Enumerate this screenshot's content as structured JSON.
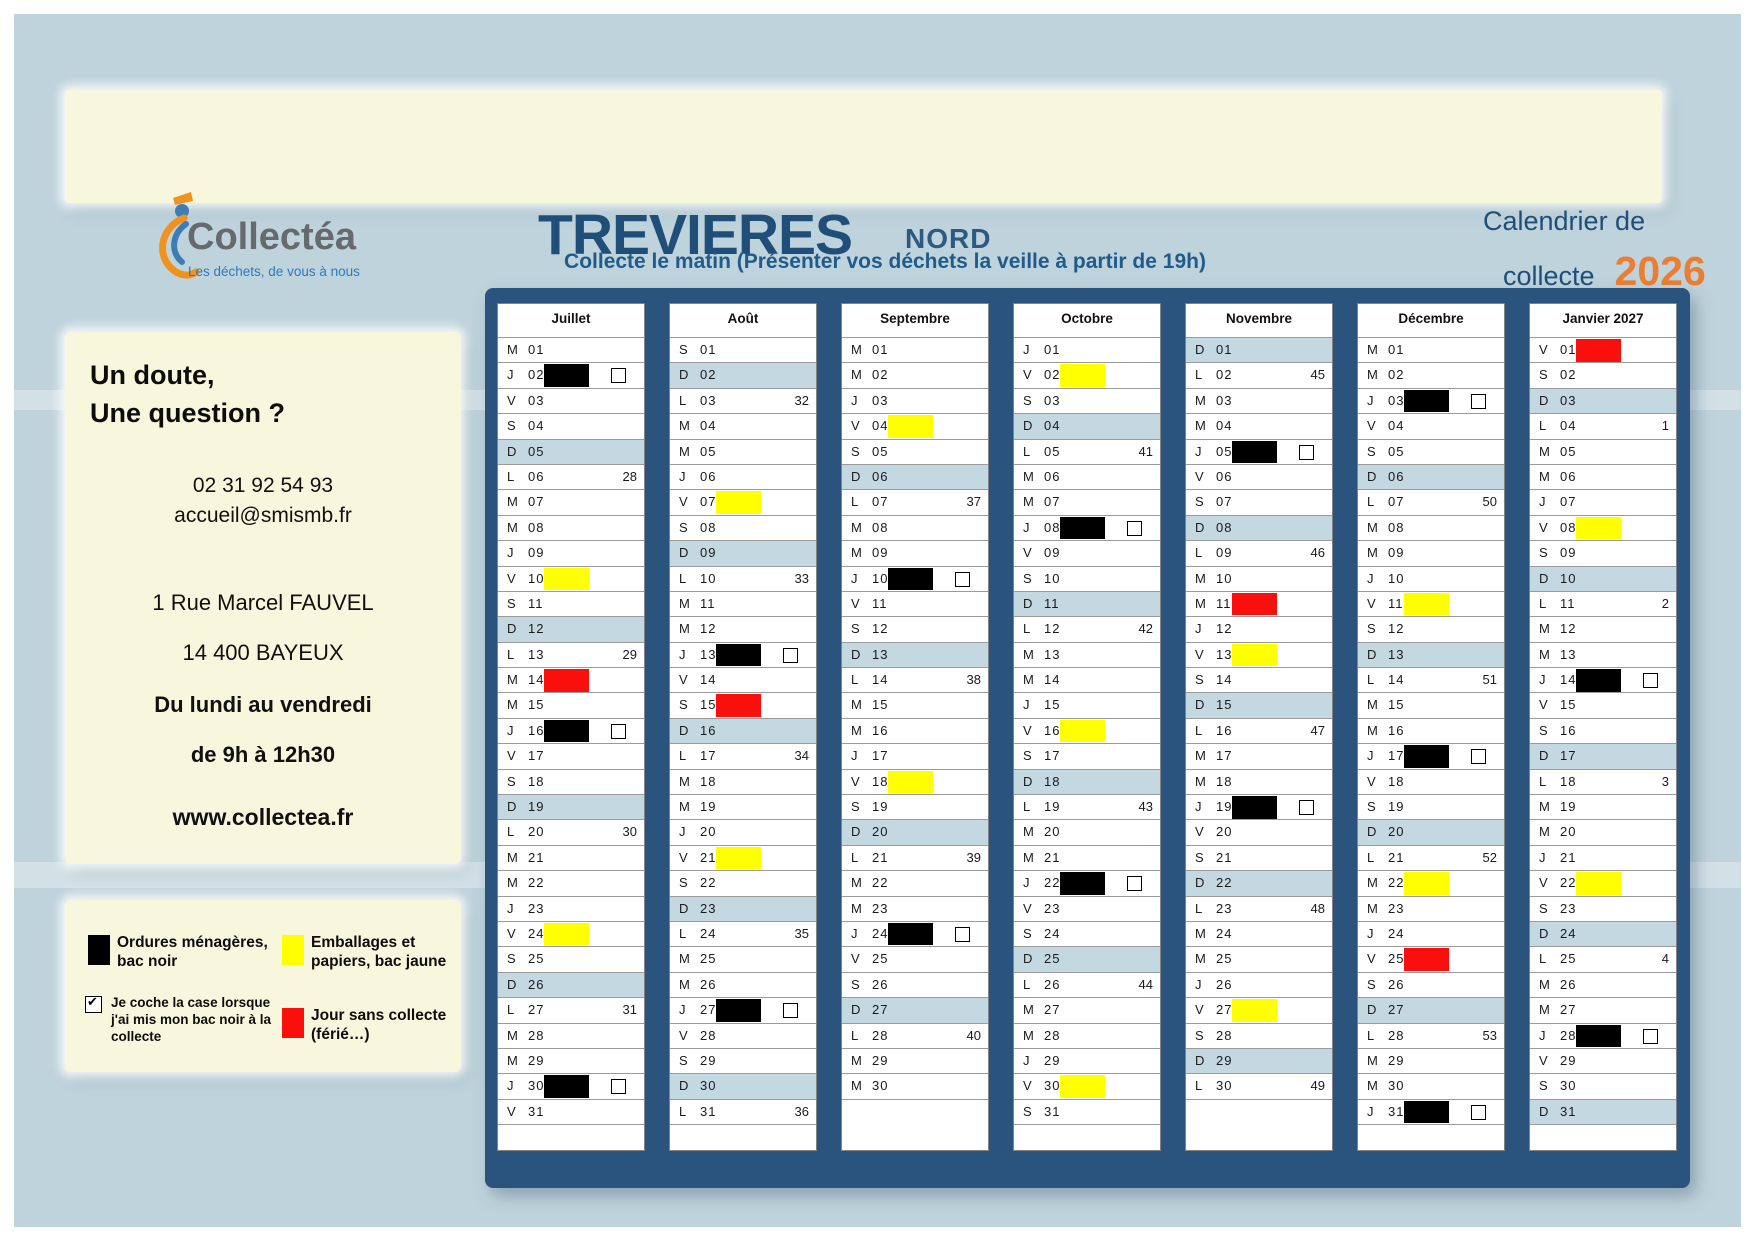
{
  "header": {
    "logo_name": "Collectéa",
    "logo_tagline": "Les déchets, de vous à nous",
    "commune": "TREVIERES",
    "zone": "NORD",
    "right_line1": "Calendrier de",
    "right_line2": "collecte",
    "year": "2026"
  },
  "notice": "Collecte le matin (Présenter vos déchets la veille à partir de 19h)",
  "contact": {
    "heading1": "Un doute,",
    "heading2": "Une question ?",
    "phone": "02 31 92 54 93",
    "email": "accueil@smismb.fr",
    "address1": "1 Rue Marcel FAUVEL",
    "address2": "14 400 BAYEUX",
    "hours1": "Du lundi au vendredi",
    "hours2": "de 9h à 12h30",
    "website": "www.collectea.fr"
  },
  "legend": {
    "black_line1": "Ordures ménagères,",
    "black_line2": "bac noir",
    "yellow_line1": "Emballages et",
    "yellow_line2": "papiers, bac jaune",
    "checkbox_label": "Je coche la case lorsque j'ai mis mon bac noir à la collecte",
    "checkbox_checked": true,
    "red_line1": "Jour sans collecte",
    "red_line2": "(férié…)"
  },
  "colors": {
    "black": "#000000",
    "yellow": "#ffff00",
    "red": "#f90f0c",
    "sunday_row": "#c4d8e2",
    "panel_navy": "#2a547d",
    "accent_orange": "#ed7d31",
    "accent_blue": "#1f4e79",
    "cream": "#f7f7de",
    "page_blue": "#bfd3dc"
  },
  "calendar": {
    "months": [
      {
        "name": "Juillet",
        "days": [
          {
            "d": "M",
            "n": "01"
          },
          {
            "d": "J",
            "n": "02",
            "m": "black",
            "c": true
          },
          {
            "d": "V",
            "n": "03"
          },
          {
            "d": "S",
            "n": "04"
          },
          {
            "d": "D",
            "n": "05"
          },
          {
            "d": "L",
            "n": "06",
            "w": "28"
          },
          {
            "d": "M",
            "n": "07"
          },
          {
            "d": "M",
            "n": "08"
          },
          {
            "d": "J",
            "n": "09"
          },
          {
            "d": "V",
            "n": "10",
            "m": "yellow"
          },
          {
            "d": "S",
            "n": "11"
          },
          {
            "d": "D",
            "n": "12"
          },
          {
            "d": "L",
            "n": "13",
            "w": "29"
          },
          {
            "d": "M",
            "n": "14",
            "m": "red"
          },
          {
            "d": "M",
            "n": "15"
          },
          {
            "d": "J",
            "n": "16",
            "m": "black",
            "c": true
          },
          {
            "d": "V",
            "n": "17"
          },
          {
            "d": "S",
            "n": "18"
          },
          {
            "d": "D",
            "n": "19"
          },
          {
            "d": "L",
            "n": "20",
            "w": "30"
          },
          {
            "d": "M",
            "n": "21"
          },
          {
            "d": "M",
            "n": "22"
          },
          {
            "d": "J",
            "n": "23"
          },
          {
            "d": "V",
            "n": "24",
            "m": "yellow"
          },
          {
            "d": "S",
            "n": "25"
          },
          {
            "d": "D",
            "n": "26"
          },
          {
            "d": "L",
            "n": "27",
            "w": "31"
          },
          {
            "d": "M",
            "n": "28"
          },
          {
            "d": "M",
            "n": "29"
          },
          {
            "d": "J",
            "n": "30",
            "m": "black",
            "c": true
          },
          {
            "d": "V",
            "n": "31"
          }
        ]
      },
      {
        "name": "Août",
        "days": [
          {
            "d": "S",
            "n": "01"
          },
          {
            "d": "D",
            "n": "02"
          },
          {
            "d": "L",
            "n": "03",
            "w": "32"
          },
          {
            "d": "M",
            "n": "04"
          },
          {
            "d": "M",
            "n": "05"
          },
          {
            "d": "J",
            "n": "06"
          },
          {
            "d": "V",
            "n": "07",
            "m": "yellow"
          },
          {
            "d": "S",
            "n": "08"
          },
          {
            "d": "D",
            "n": "09"
          },
          {
            "d": "L",
            "n": "10",
            "w": "33"
          },
          {
            "d": "M",
            "n": "11"
          },
          {
            "d": "M",
            "n": "12"
          },
          {
            "d": "J",
            "n": "13",
            "m": "black",
            "c": true
          },
          {
            "d": "V",
            "n": "14"
          },
          {
            "d": "S",
            "n": "15",
            "m": "red"
          },
          {
            "d": "D",
            "n": "16"
          },
          {
            "d": "L",
            "n": "17",
            "w": "34"
          },
          {
            "d": "M",
            "n": "18"
          },
          {
            "d": "M",
            "n": "19"
          },
          {
            "d": "J",
            "n": "20"
          },
          {
            "d": "V",
            "n": "21",
            "m": "yellow"
          },
          {
            "d": "S",
            "n": "22"
          },
          {
            "d": "D",
            "n": "23"
          },
          {
            "d": "L",
            "n": "24",
            "w": "35"
          },
          {
            "d": "M",
            "n": "25"
          },
          {
            "d": "M",
            "n": "26"
          },
          {
            "d": "J",
            "n": "27",
            "m": "black",
            "c": true
          },
          {
            "d": "V",
            "n": "28"
          },
          {
            "d": "S",
            "n": "29"
          },
          {
            "d": "D",
            "n": "30"
          },
          {
            "d": "L",
            "n": "31",
            "w": "36"
          }
        ]
      },
      {
        "name": "Septembre",
        "days": [
          {
            "d": "M",
            "n": "01"
          },
          {
            "d": "M",
            "n": "02"
          },
          {
            "d": "J",
            "n": "03"
          },
          {
            "d": "V",
            "n": "04",
            "m": "yellow"
          },
          {
            "d": "S",
            "n": "05"
          },
          {
            "d": "D",
            "n": "06"
          },
          {
            "d": "L",
            "n": "07",
            "w": "37"
          },
          {
            "d": "M",
            "n": "08"
          },
          {
            "d": "M",
            "n": "09"
          },
          {
            "d": "J",
            "n": "10",
            "m": "black",
            "c": true
          },
          {
            "d": "V",
            "n": "11"
          },
          {
            "d": "S",
            "n": "12"
          },
          {
            "d": "D",
            "n": "13"
          },
          {
            "d": "L",
            "n": "14",
            "w": "38"
          },
          {
            "d": "M",
            "n": "15"
          },
          {
            "d": "M",
            "n": "16"
          },
          {
            "d": "J",
            "n": "17"
          },
          {
            "d": "V",
            "n": "18",
            "m": "yellow"
          },
          {
            "d": "S",
            "n": "19"
          },
          {
            "d": "D",
            "n": "20"
          },
          {
            "d": "L",
            "n": "21",
            "w": "39"
          },
          {
            "d": "M",
            "n": "22"
          },
          {
            "d": "M",
            "n": "23"
          },
          {
            "d": "J",
            "n": "24",
            "m": "black",
            "c": true
          },
          {
            "d": "V",
            "n": "25"
          },
          {
            "d": "S",
            "n": "26"
          },
          {
            "d": "D",
            "n": "27"
          },
          {
            "d": "L",
            "n": "28",
            "w": "40"
          },
          {
            "d": "M",
            "n": "29"
          },
          {
            "d": "M",
            "n": "30"
          }
        ]
      },
      {
        "name": "Octobre",
        "days": [
          {
            "d": "J",
            "n": "01"
          },
          {
            "d": "V",
            "n": "02",
            "m": "yellow"
          },
          {
            "d": "S",
            "n": "03"
          },
          {
            "d": "D",
            "n": "04"
          },
          {
            "d": "L",
            "n": "05",
            "w": "41"
          },
          {
            "d": "M",
            "n": "06"
          },
          {
            "d": "M",
            "n": "07"
          },
          {
            "d": "J",
            "n": "08",
            "m": "black",
            "c": true
          },
          {
            "d": "V",
            "n": "09"
          },
          {
            "d": "S",
            "n": "10"
          },
          {
            "d": "D",
            "n": "11"
          },
          {
            "d": "L",
            "n": "12",
            "w": "42"
          },
          {
            "d": "M",
            "n": "13"
          },
          {
            "d": "M",
            "n": "14"
          },
          {
            "d": "J",
            "n": "15"
          },
          {
            "d": "V",
            "n": "16",
            "m": "yellow"
          },
          {
            "d": "S",
            "n": "17"
          },
          {
            "d": "D",
            "n": "18"
          },
          {
            "d": "L",
            "n": "19",
            "w": "43"
          },
          {
            "d": "M",
            "n": "20"
          },
          {
            "d": "M",
            "n": "21"
          },
          {
            "d": "J",
            "n": "22",
            "m": "black",
            "c": true
          },
          {
            "d": "V",
            "n": "23"
          },
          {
            "d": "S",
            "n": "24"
          },
          {
            "d": "D",
            "n": "25"
          },
          {
            "d": "L",
            "n": "26",
            "w": "44"
          },
          {
            "d": "M",
            "n": "27"
          },
          {
            "d": "M",
            "n": "28"
          },
          {
            "d": "J",
            "n": "29"
          },
          {
            "d": "V",
            "n": "30",
            "m": "yellow"
          },
          {
            "d": "S",
            "n": "31"
          }
        ]
      },
      {
        "name": "Novembre",
        "days": [
          {
            "d": "D",
            "n": "01"
          },
          {
            "d": "L",
            "n": "02",
            "w": "45"
          },
          {
            "d": "M",
            "n": "03"
          },
          {
            "d": "M",
            "n": "04"
          },
          {
            "d": "J",
            "n": "05",
            "m": "black",
            "c": true
          },
          {
            "d": "V",
            "n": "06"
          },
          {
            "d": "S",
            "n": "07"
          },
          {
            "d": "D",
            "n": "08"
          },
          {
            "d": "L",
            "n": "09",
            "w": "46"
          },
          {
            "d": "M",
            "n": "10"
          },
          {
            "d": "M",
            "n": "11",
            "m": "red"
          },
          {
            "d": "J",
            "n": "12"
          },
          {
            "d": "V",
            "n": "13",
            "m": "yellow"
          },
          {
            "d": "S",
            "n": "14"
          },
          {
            "d": "D",
            "n": "15"
          },
          {
            "d": "L",
            "n": "16",
            "w": "47"
          },
          {
            "d": "M",
            "n": "17"
          },
          {
            "d": "M",
            "n": "18"
          },
          {
            "d": "J",
            "n": "19",
            "m": "black",
            "c": true
          },
          {
            "d": "V",
            "n": "20"
          },
          {
            "d": "S",
            "n": "21"
          },
          {
            "d": "D",
            "n": "22"
          },
          {
            "d": "L",
            "n": "23",
            "w": "48"
          },
          {
            "d": "M",
            "n": "24"
          },
          {
            "d": "M",
            "n": "25"
          },
          {
            "d": "J",
            "n": "26"
          },
          {
            "d": "V",
            "n": "27",
            "m": "yellow"
          },
          {
            "d": "S",
            "n": "28"
          },
          {
            "d": "D",
            "n": "29"
          },
          {
            "d": "L",
            "n": "30",
            "w": "49"
          }
        ]
      },
      {
        "name": "Décembre",
        "days": [
          {
            "d": "M",
            "n": "01"
          },
          {
            "d": "M",
            "n": "02"
          },
          {
            "d": "J",
            "n": "03",
            "m": "black",
            "c": true
          },
          {
            "d": "V",
            "n": "04"
          },
          {
            "d": "S",
            "n": "05"
          },
          {
            "d": "D",
            "n": "06"
          },
          {
            "d": "L",
            "n": "07",
            "w": "50"
          },
          {
            "d": "M",
            "n": "08"
          },
          {
            "d": "M",
            "n": "09"
          },
          {
            "d": "J",
            "n": "10"
          },
          {
            "d": "V",
            "n": "11",
            "m": "yellow"
          },
          {
            "d": "S",
            "n": "12"
          },
          {
            "d": "D",
            "n": "13"
          },
          {
            "d": "L",
            "n": "14",
            "w": "51"
          },
          {
            "d": "M",
            "n": "15"
          },
          {
            "d": "M",
            "n": "16"
          },
          {
            "d": "J",
            "n": "17",
            "m": "black",
            "c": true
          },
          {
            "d": "V",
            "n": "18"
          },
          {
            "d": "S",
            "n": "19"
          },
          {
            "d": "D",
            "n": "20"
          },
          {
            "d": "L",
            "n": "21",
            "w": "52"
          },
          {
            "d": "M",
            "n": "22",
            "m": "yellow"
          },
          {
            "d": "M",
            "n": "23"
          },
          {
            "d": "J",
            "n": "24"
          },
          {
            "d": "V",
            "n": "25",
            "m": "red"
          },
          {
            "d": "S",
            "n": "26"
          },
          {
            "d": "D",
            "n": "27"
          },
          {
            "d": "L",
            "n": "28",
            "w": "53"
          },
          {
            "d": "M",
            "n": "29"
          },
          {
            "d": "M",
            "n": "30"
          },
          {
            "d": "J",
            "n": "31",
            "m": "black",
            "c": true
          }
        ]
      },
      {
        "name": "Janvier 2027",
        "days": [
          {
            "d": "V",
            "n": "01",
            "m": "red"
          },
          {
            "d": "S",
            "n": "02"
          },
          {
            "d": "D",
            "n": "03"
          },
          {
            "d": "L",
            "n": "04",
            "w": "1"
          },
          {
            "d": "M",
            "n": "05"
          },
          {
            "d": "M",
            "n": "06"
          },
          {
            "d": "J",
            "n": "07"
          },
          {
            "d": "V",
            "n": "08",
            "m": "yellow"
          },
          {
            "d": "S",
            "n": "09"
          },
          {
            "d": "D",
            "n": "10"
          },
          {
            "d": "L",
            "n": "11",
            "w": "2"
          },
          {
            "d": "M",
            "n": "12"
          },
          {
            "d": "M",
            "n": "13"
          },
          {
            "d": "J",
            "n": "14",
            "m": "black",
            "c": true
          },
          {
            "d": "V",
            "n": "15"
          },
          {
            "d": "S",
            "n": "16"
          },
          {
            "d": "D",
            "n": "17"
          },
          {
            "d": "L",
            "n": "18",
            "w": "3"
          },
          {
            "d": "M",
            "n": "19"
          },
          {
            "d": "M",
            "n": "20"
          },
          {
            "d": "J",
            "n": "21"
          },
          {
            "d": "V",
            "n": "22",
            "m": "yellow"
          },
          {
            "d": "S",
            "n": "23"
          },
          {
            "d": "D",
            "n": "24"
          },
          {
            "d": "L",
            "n": "25",
            "w": "4"
          },
          {
            "d": "M",
            "n": "26"
          },
          {
            "d": "M",
            "n": "27"
          },
          {
            "d": "J",
            "n": "28",
            "m": "black",
            "c": true
          },
          {
            "d": "V",
            "n": "29"
          },
          {
            "d": "S",
            "n": "30"
          },
          {
            "d": "D",
            "n": "31"
          }
        ]
      }
    ]
  }
}
